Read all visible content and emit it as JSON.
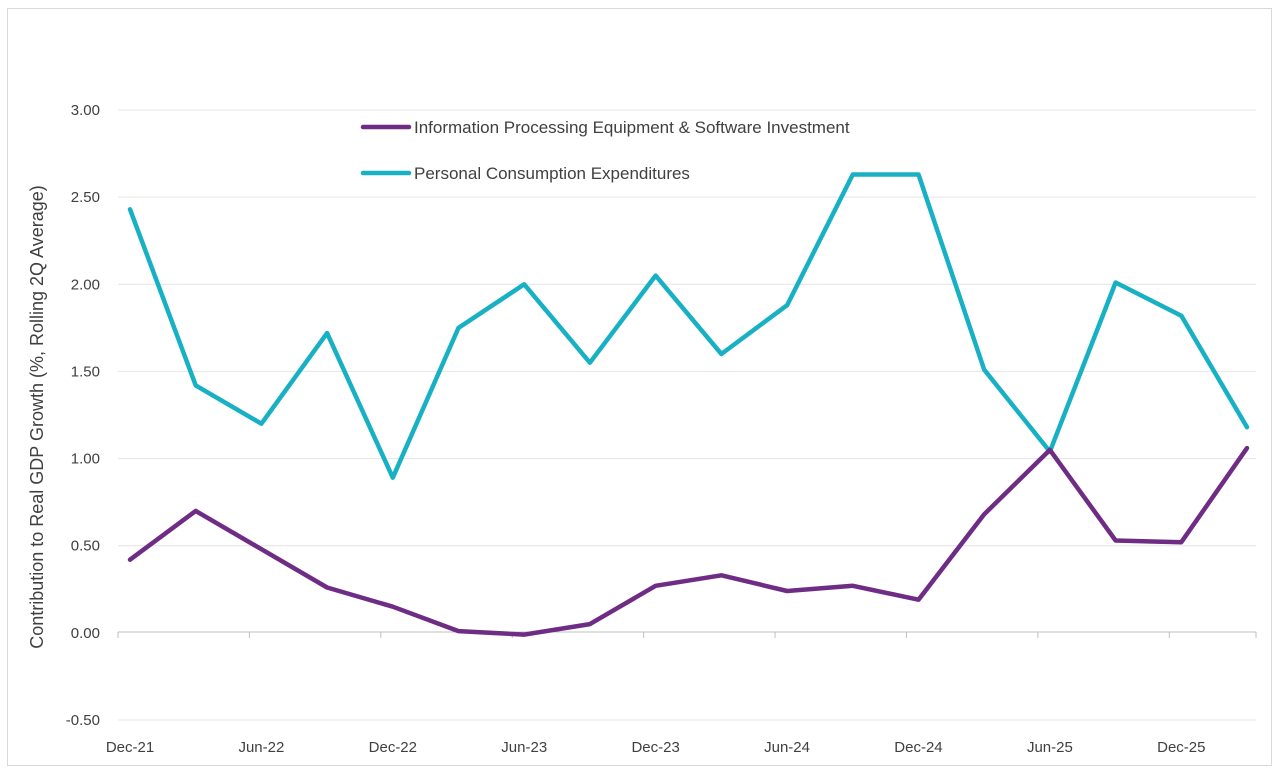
{
  "chart_data": {
    "type": "line",
    "xlabel": "",
    "ylabel": "Contribution to Real GDP Growth (%, Rolling 2Q Average)",
    "ylim": [
      -0.5,
      3.0
    ],
    "yticks": [
      "3.00",
      "2.50",
      "2.00",
      "1.50",
      "1.00",
      "0.50",
      "0.00",
      "-0.50"
    ],
    "ytick_values": [
      3.0,
      2.5,
      2.0,
      1.5,
      1.0,
      0.5,
      0.0,
      -0.5
    ],
    "x": [
      "Dec-21",
      "Mar-22",
      "Jun-22",
      "Sep-22",
      "Dec-22",
      "Mar-23",
      "Jun-23",
      "Sep-23",
      "Dec-23",
      "Mar-24",
      "Jun-24",
      "Sep-24",
      "Dec-24",
      "Mar-25",
      "Jun-25",
      "Sep-25",
      "Dec-25",
      "Mar-26"
    ],
    "xtick_labels": [
      "Dec-21",
      "Jun-22",
      "Dec-22",
      "Jun-23",
      "Dec-23",
      "Jun-24",
      "Dec-24",
      "Jun-25",
      "Dec-25"
    ],
    "grid": true,
    "legend_position": "top-center",
    "series": [
      {
        "name": "Information Processing Equipment & Software Investment",
        "color": "#6f2c85",
        "values": [
          0.42,
          0.7,
          0.48,
          0.26,
          0.15,
          0.01,
          -0.01,
          0.05,
          0.27,
          0.33,
          0.24,
          0.27,
          0.19,
          0.68,
          1.05,
          0.53,
          0.52,
          1.06
        ]
      },
      {
        "name": "Personal Consumption Expenditures",
        "color": "#18b1c4",
        "values": [
          2.43,
          1.42,
          1.2,
          1.72,
          0.89,
          1.75,
          2.0,
          1.55,
          2.05,
          1.6,
          1.88,
          2.63,
          2.63,
          1.51,
          1.04,
          2.01,
          1.82,
          1.18
        ]
      }
    ]
  }
}
